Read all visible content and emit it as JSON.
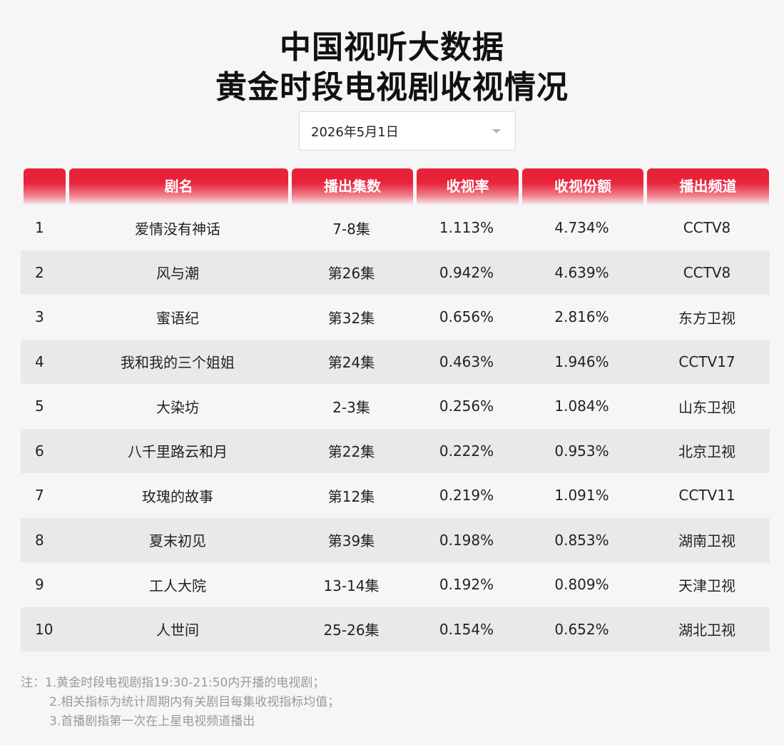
{
  "header": {
    "title_line1": "中国视听大数据",
    "title_line2": "黄金时段电视剧收视情况"
  },
  "date_select": {
    "value": "2026年5月1日"
  },
  "table": {
    "columns": [
      "",
      "剧名",
      "播出集数",
      "收视率",
      "收视份额",
      "播出频道"
    ],
    "rows": [
      {
        "rank": "1",
        "name": "爱情没有神话",
        "episodes": "7-8集",
        "rating": "1.113%",
        "share": "4.734%",
        "channel": "CCTV8"
      },
      {
        "rank": "2",
        "name": "风与潮",
        "episodes": "第26集",
        "rating": "0.942%",
        "share": "4.639%",
        "channel": "CCTV8"
      },
      {
        "rank": "3",
        "name": "蜜语纪",
        "episodes": "第32集",
        "rating": "0.656%",
        "share": "2.816%",
        "channel": "东方卫视"
      },
      {
        "rank": "4",
        "name": "我和我的三个姐姐",
        "episodes": "第24集",
        "rating": "0.463%",
        "share": "1.946%",
        "channel": "CCTV17"
      },
      {
        "rank": "5",
        "name": "大染坊",
        "episodes": "2-3集",
        "rating": "0.256%",
        "share": "1.084%",
        "channel": "山东卫视"
      },
      {
        "rank": "6",
        "name": "八千里路云和月",
        "episodes": "第22集",
        "rating": "0.222%",
        "share": "0.953%",
        "channel": "北京卫视"
      },
      {
        "rank": "7",
        "name": "玫瑰的故事",
        "episodes": "第12集",
        "rating": "0.219%",
        "share": "1.091%",
        "channel": "CCTV11"
      },
      {
        "rank": "8",
        "name": "夏末初见",
        "episodes": "第39集",
        "rating": "0.198%",
        "share": "0.853%",
        "channel": "湖南卫视"
      },
      {
        "rank": "9",
        "name": "工人大院",
        "episodes": "13-14集",
        "rating": "0.192%",
        "share": "0.809%",
        "channel": "天津卫视"
      },
      {
        "rank": "10",
        "name": "人世间",
        "episodes": "25-26集",
        "rating": "0.154%",
        "share": "0.652%",
        "channel": "湖北卫视"
      }
    ]
  },
  "notes": {
    "line1": "注：1.黄金时段电视剧指19:30-21:50内开播的电视剧；",
    "line2": "2.相关指标为统计周期内有关剧目每集收视指标均值；",
    "line3": "3.首播剧指第一次在上星电视频道播出"
  }
}
